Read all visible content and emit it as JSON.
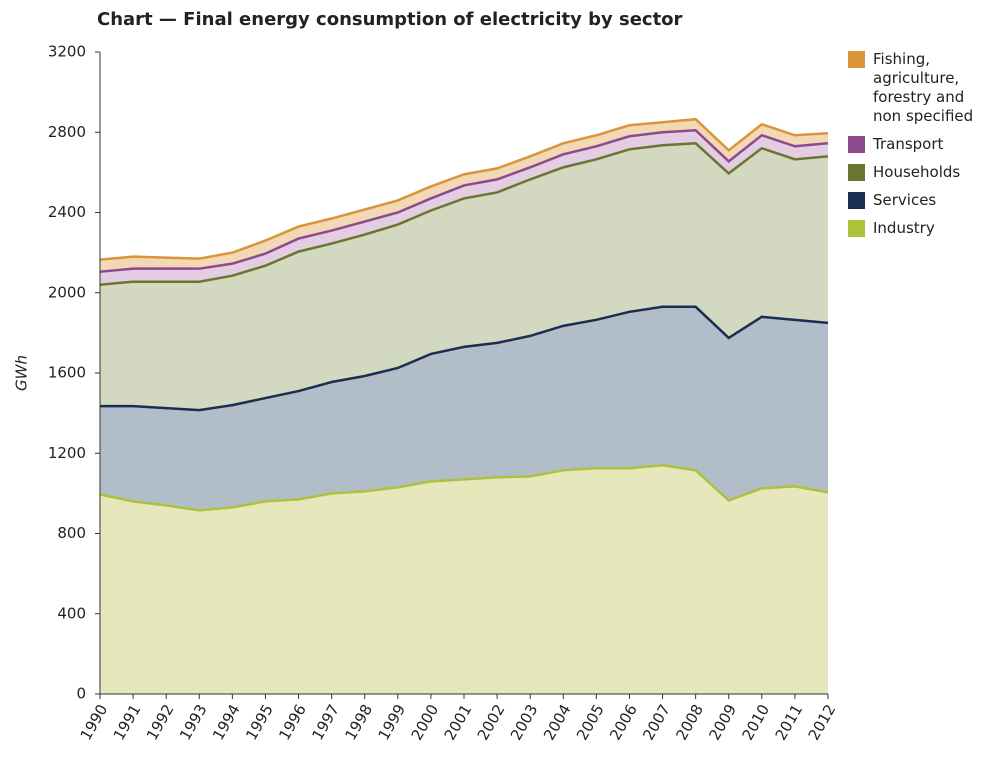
{
  "chart_data": {
    "type": "stacked_area",
    "title": "Chart — Final energy consumption of electricity by sector",
    "y_label": "GWh",
    "categories": [
      "1990",
      "1991",
      "1992",
      "1993",
      "1994",
      "1995",
      "1996",
      "1997",
      "1998",
      "1999",
      "2000",
      "2001",
      "2002",
      "2003",
      "2004",
      "2005",
      "2006",
      "2007",
      "2008",
      "2009",
      "2010",
      "2011",
      "2012"
    ],
    "series": [
      {
        "name": "Industry",
        "color": "#adc13c",
        "fill": "#e6e8bb",
        "values": [
          995,
          960,
          940,
          915,
          930,
          960,
          970,
          1000,
          1010,
          1030,
          1060,
          1070,
          1080,
          1085,
          1115,
          1125,
          1125,
          1140,
          1115,
          965,
          1025,
          1035,
          1005
        ]
      },
      {
        "name": "Services",
        "color": "#1c2d52",
        "fill": "#b2bdca",
        "values": [
          440,
          475,
          485,
          500,
          510,
          515,
          540,
          555,
          575,
          595,
          635,
          660,
          670,
          700,
          720,
          740,
          780,
          790,
          815,
          810,
          855,
          830,
          845
        ]
      },
      {
        "name": "Households",
        "color": "#6b7530",
        "fill": "#d3d9c0",
        "values": [
          605,
          620,
          630,
          640,
          645,
          660,
          695,
          690,
          705,
          715,
          715,
          740,
          750,
          780,
          790,
          800,
          810,
          805,
          815,
          820,
          840,
          800,
          830
        ]
      },
      {
        "name": "Transport",
        "color": "#8c4a8c",
        "fill": "#e3cde2",
        "values": [
          65,
          65,
          65,
          65,
          60,
          60,
          65,
          65,
          65,
          60,
          60,
          65,
          65,
          60,
          65,
          65,
          65,
          65,
          65,
          60,
          65,
          65,
          65
        ]
      },
      {
        "name": "Fishing, agriculture, forestry and non specified",
        "color": "#d9953a",
        "fill": "#f3d8b6",
        "values": [
          60,
          60,
          55,
          50,
          55,
          65,
          60,
          60,
          60,
          60,
          60,
          55,
          55,
          55,
          55,
          55,
          55,
          50,
          55,
          55,
          55,
          55,
          50
        ]
      }
    ],
    "ylim": [
      0,
      3200
    ],
    "yticks": [
      0,
      400,
      800,
      1200,
      1600,
      2000,
      2400,
      2800,
      3200
    ],
    "grid": false
  }
}
